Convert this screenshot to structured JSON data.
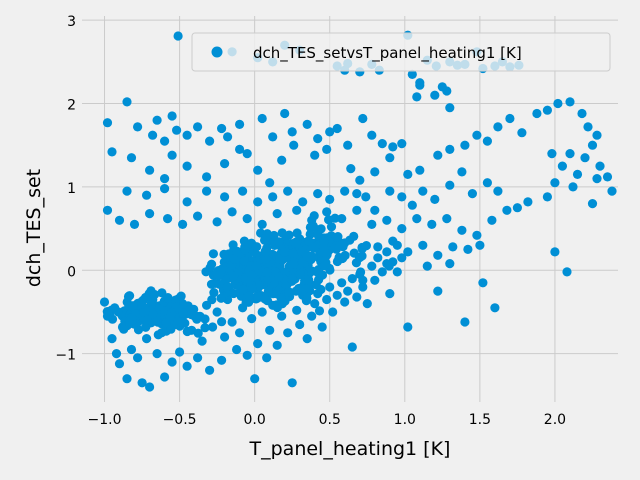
{
  "chart_data": {
    "type": "scatter",
    "xlabel": "T_panel_heating1 [K]",
    "ylabel": "dch_TES_set",
    "xlim": [
      -1.15,
      2.42
    ],
    "ylim": [
      -1.58,
      3.05
    ],
    "xticks": [
      -1.0,
      -0.5,
      0.0,
      0.5,
      1.0,
      1.5,
      2.0
    ],
    "xtick_labels": [
      "−1.0",
      "−0.5",
      "0.0",
      "0.5",
      "1.0",
      "1.5",
      "2.0"
    ],
    "yticks": [
      -1,
      0,
      1,
      2,
      3
    ],
    "ytick_labels": [
      "−1",
      "0",
      "1",
      "2",
      "3"
    ],
    "grid": true,
    "legend_position": "top-right",
    "series": [
      {
        "name": "dch_TES_setvsT_panel_heating1 [K]",
        "color": "#008fd5",
        "points": [
          [
            -0.51,
            2.81
          ],
          [
            -0.15,
            2.62
          ],
          [
            0.02,
            2.55
          ],
          [
            0.12,
            2.5
          ],
          [
            0.2,
            2.7
          ],
          [
            0.3,
            2.64
          ],
          [
            0.55,
            2.45
          ],
          [
            0.6,
            2.4
          ],
          [
            0.62,
            2.48
          ],
          [
            0.7,
            2.38
          ],
          [
            0.78,
            2.47
          ],
          [
            1.02,
            2.82
          ],
          [
            1.15,
            2.52
          ],
          [
            1.21,
            2.45
          ],
          [
            1.3,
            2.5
          ],
          [
            1.35,
            2.46
          ],
          [
            1.4,
            2.47
          ],
          [
            1.48,
            2.62
          ],
          [
            1.52,
            2.42
          ],
          [
            1.6,
            2.45
          ],
          [
            1.65,
            2.5
          ],
          [
            1.7,
            2.44
          ],
          [
            1.76,
            2.46
          ],
          [
            1.05,
            2.35
          ],
          [
            1.1,
            2.22
          ],
          [
            1.08,
            2.08
          ],
          [
            1.2,
            2.1
          ],
          [
            1.25,
            2.2
          ],
          [
            1.28,
            2.15
          ],
          [
            1.3,
            1.95
          ],
          [
            1.1,
            2.25
          ],
          [
            0.83,
            2.4
          ],
          [
            -0.98,
            1.77
          ],
          [
            -0.85,
            2.02
          ],
          [
            -0.78,
            1.72
          ],
          [
            -0.68,
            1.62
          ],
          [
            -0.65,
            1.8
          ],
          [
            -0.6,
            1.55
          ],
          [
            -0.55,
            1.85
          ],
          [
            -0.52,
            1.68
          ],
          [
            -0.45,
            1.62
          ],
          [
            -0.38,
            1.72
          ],
          [
            -0.3,
            1.55
          ],
          [
            -0.22,
            1.7
          ],
          [
            -0.18,
            1.6
          ],
          [
            -0.1,
            1.75
          ],
          [
            -0.05,
            1.4
          ],
          [
            0.05,
            1.82
          ],
          [
            0.12,
            1.6
          ],
          [
            0.2,
            1.88
          ],
          [
            0.25,
            1.66
          ],
          [
            0.35,
            1.75
          ],
          [
            0.42,
            1.58
          ],
          [
            0.5,
            1.66
          ],
          [
            0.55,
            1.7
          ],
          [
            0.62,
            1.5
          ],
          [
            0.72,
            1.82
          ],
          [
            0.78,
            1.62
          ],
          [
            0.85,
            1.52
          ],
          [
            0.92,
            1.48
          ],
          [
            0.98,
            1.52
          ],
          [
            -0.95,
            1.42
          ],
          [
            -0.82,
            1.35
          ],
          [
            -0.7,
            1.2
          ],
          [
            -0.6,
            1.1
          ],
          [
            -0.55,
            1.38
          ],
          [
            -0.45,
            1.25
          ],
          [
            -0.32,
            1.12
          ],
          [
            -0.2,
            1.28
          ],
          [
            -0.1,
            1.45
          ],
          [
            0.02,
            1.2
          ],
          [
            0.1,
            1.05
          ],
          [
            0.18,
            1.32
          ],
          [
            0.26,
            1.5
          ],
          [
            0.4,
            1.38
          ],
          [
            0.48,
            1.45
          ],
          [
            0.64,
            1.22
          ],
          [
            0.7,
            1.08
          ],
          [
            0.8,
            1.18
          ],
          [
            0.9,
            1.35
          ],
          [
            1.02,
            1.15
          ],
          [
            1.1,
            1.2
          ],
          [
            1.22,
            1.38
          ],
          [
            1.3,
            1.45
          ],
          [
            1.4,
            1.5
          ],
          [
            1.48,
            1.62
          ],
          [
            1.55,
            1.55
          ],
          [
            1.62,
            1.72
          ],
          [
            1.7,
            1.82
          ],
          [
            1.78,
            1.65
          ],
          [
            1.88,
            1.88
          ],
          [
            1.95,
            1.92
          ],
          [
            2.02,
            2.0
          ],
          [
            2.1,
            2.02
          ],
          [
            2.18,
            1.88
          ],
          [
            2.22,
            1.72
          ],
          [
            2.28,
            1.62
          ],
          [
            2.1,
            1.4
          ],
          [
            2.2,
            1.35
          ],
          [
            2.25,
            1.5
          ],
          [
            2.3,
            1.25
          ],
          [
            1.98,
            1.4
          ],
          [
            2.05,
            1.25
          ],
          [
            2.15,
            1.15
          ],
          [
            2.28,
            1.1
          ],
          [
            2.35,
            1.12
          ],
          [
            2.0,
            1.05
          ],
          [
            2.12,
            1.0
          ],
          [
            2.25,
            0.8
          ],
          [
            1.95,
            0.88
          ],
          [
            1.82,
            0.82
          ],
          [
            1.75,
            0.75
          ],
          [
            1.62,
            0.95
          ],
          [
            1.55,
            1.05
          ],
          [
            1.45,
            0.92
          ],
          [
            1.38,
            1.18
          ],
          [
            1.3,
            1.02
          ],
          [
            1.2,
            0.85
          ],
          [
            1.12,
            0.95
          ],
          [
            1.05,
            0.78
          ],
          [
            0.98,
            0.88
          ],
          [
            0.9,
            0.95
          ],
          [
            0.8,
            0.72
          ],
          [
            0.74,
            0.88
          ],
          [
            0.68,
            0.92
          ],
          [
            0.6,
            0.95
          ],
          [
            0.5,
            0.85
          ],
          [
            0.42,
            0.92
          ],
          [
            0.32,
            0.82
          ],
          [
            0.22,
            0.95
          ],
          [
            0.12,
            0.88
          ],
          [
            0.02,
            0.82
          ],
          [
            -0.08,
            0.95
          ],
          [
            -0.2,
            0.88
          ],
          [
            -0.32,
            0.95
          ],
          [
            -0.45,
            0.82
          ],
          [
            -0.6,
            0.98
          ],
          [
            -0.72,
            0.9
          ],
          [
            -0.85,
            0.95
          ],
          [
            -0.98,
            0.72
          ],
          [
            -0.9,
            0.6
          ],
          [
            -0.8,
            0.55
          ],
          [
            -0.7,
            0.68
          ],
          [
            -0.58,
            0.62
          ],
          [
            -0.48,
            0.55
          ],
          [
            -0.38,
            0.65
          ],
          [
            -0.25,
            0.58
          ],
          [
            -0.15,
            0.7
          ],
          [
            -0.05,
            0.62
          ],
          [
            0.05,
            0.55
          ],
          [
            0.15,
            0.68
          ],
          [
            0.28,
            0.72
          ],
          [
            0.38,
            0.6
          ],
          [
            0.48,
            0.7
          ],
          [
            0.58,
            0.62
          ],
          [
            0.68,
            0.72
          ],
          [
            0.78,
            0.55
          ],
          [
            0.88,
            0.6
          ],
          [
            0.98,
            0.5
          ],
          [
            1.08,
            0.62
          ],
          [
            1.18,
            0.55
          ],
          [
            1.28,
            0.62
          ],
          [
            1.38,
            0.48
          ],
          [
            1.48,
            0.42
          ],
          [
            1.58,
            0.6
          ],
          [
            1.68,
            0.72
          ],
          [
            1.5,
            0.3
          ],
          [
            1.42,
            0.25
          ],
          [
            1.32,
            0.28
          ],
          [
            1.22,
            0.18
          ],
          [
            1.12,
            0.3
          ],
          [
            1.02,
            0.22
          ],
          [
            0.92,
            0.35
          ],
          [
            0.82,
            0.28
          ],
          [
            1.6,
            -0.45
          ],
          [
            1.52,
            -0.15
          ],
          [
            1.4,
            -0.62
          ],
          [
            1.22,
            -0.25
          ],
          [
            1.02,
            -0.68
          ],
          [
            0.95,
            -0.02
          ],
          [
            0.88,
            0.08
          ],
          [
            0.72,
            -0.12
          ],
          [
            0.65,
            -0.92
          ],
          [
            1.15,
            0.05
          ],
          [
            1.3,
            0.08
          ],
          [
            2.0,
            0.22
          ],
          [
            2.08,
            -0.02
          ],
          [
            2.38,
            0.95
          ],
          [
            -1.0,
            -0.38
          ],
          [
            -0.98,
            -0.55
          ],
          [
            -0.95,
            -0.82
          ],
          [
            -0.92,
            -1.0
          ],
          [
            -0.9,
            -1.12
          ],
          [
            -0.88,
            -0.68
          ],
          [
            -0.85,
            -1.3
          ],
          [
            -0.82,
            -0.95
          ],
          [
            -0.8,
            -0.48
          ],
          [
            -0.78,
            -1.05
          ],
          [
            -0.75,
            -1.35
          ],
          [
            -0.72,
            -0.82
          ],
          [
            -0.7,
            -1.4
          ],
          [
            -0.68,
            -0.6
          ],
          [
            -0.65,
            -1.0
          ],
          [
            -0.62,
            -0.75
          ],
          [
            -0.6,
            -1.28
          ],
          [
            -0.58,
            -0.52
          ],
          [
            -0.55,
            -1.1
          ],
          [
            -0.52,
            -0.65
          ],
          [
            -0.5,
            -0.98
          ],
          [
            -0.48,
            -0.4
          ],
          [
            -0.45,
            -1.15
          ],
          [
            -0.42,
            -0.72
          ],
          [
            -0.4,
            -0.55
          ],
          [
            -0.38,
            -1.05
          ],
          [
            -0.35,
            -0.85
          ],
          [
            -0.32,
            -0.42
          ],
          [
            -0.3,
            -1.2
          ],
          [
            -0.28,
            -0.68
          ],
          [
            -0.25,
            -0.5
          ],
          [
            -0.22,
            -1.08
          ],
          [
            -0.2,
            -0.8
          ],
          [
            -0.18,
            -0.35
          ],
          [
            -0.15,
            -0.62
          ],
          [
            -0.12,
            -0.95
          ],
          [
            -0.1,
            -0.75
          ],
          [
            -0.08,
            -0.45
          ],
          [
            -0.05,
            -1.02
          ],
          [
            -0.02,
            -0.58
          ],
          [
            0.0,
            -1.3
          ],
          [
            0.02,
            -0.88
          ],
          [
            0.05,
            -0.5
          ],
          [
            0.08,
            -1.05
          ],
          [
            0.1,
            -0.72
          ],
          [
            0.12,
            -0.42
          ],
          [
            0.15,
            -0.9
          ],
          [
            0.18,
            -0.55
          ],
          [
            0.2,
            -0.32
          ],
          [
            0.22,
            -0.75
          ],
          [
            0.25,
            -1.35
          ],
          [
            0.28,
            -0.48
          ],
          [
            0.3,
            -0.65
          ],
          [
            0.32,
            -0.3
          ],
          [
            0.35,
            -0.82
          ],
          [
            0.38,
            -0.55
          ],
          [
            0.4,
            -0.4
          ],
          [
            0.42,
            -0.28
          ],
          [
            0.45,
            -0.68
          ],
          [
            0.48,
            -0.35
          ],
          [
            0.5,
            -0.2
          ],
          [
            0.52,
            -0.5
          ],
          [
            0.55,
            -0.3
          ],
          [
            0.58,
            -0.15
          ],
          [
            0.6,
            -0.38
          ],
          [
            0.62,
            -0.25
          ],
          [
            0.65,
            -0.1
          ],
          [
            0.68,
            -0.32
          ],
          [
            0.7,
            -0.05
          ],
          [
            0.72,
            -0.2
          ],
          [
            0.75,
            -0.4
          ],
          [
            0.78,
            0.05
          ],
          [
            0.8,
            -0.12
          ],
          [
            0.82,
            0.15
          ],
          [
            0.85,
            -0.02
          ],
          [
            0.88,
            0.22
          ],
          [
            0.9,
            -0.28
          ],
          [
            0.92,
            0.1
          ],
          [
            0.95,
            0.3
          ],
          [
            0.98,
            0.15
          ]
        ],
        "cluster_centers": [
          [
            -0.65,
            -0.52
          ],
          [
            -0.05,
            -0.05
          ],
          [
            0.2,
            0.05
          ],
          [
            0.45,
            0.25
          ]
        ]
      }
    ]
  }
}
